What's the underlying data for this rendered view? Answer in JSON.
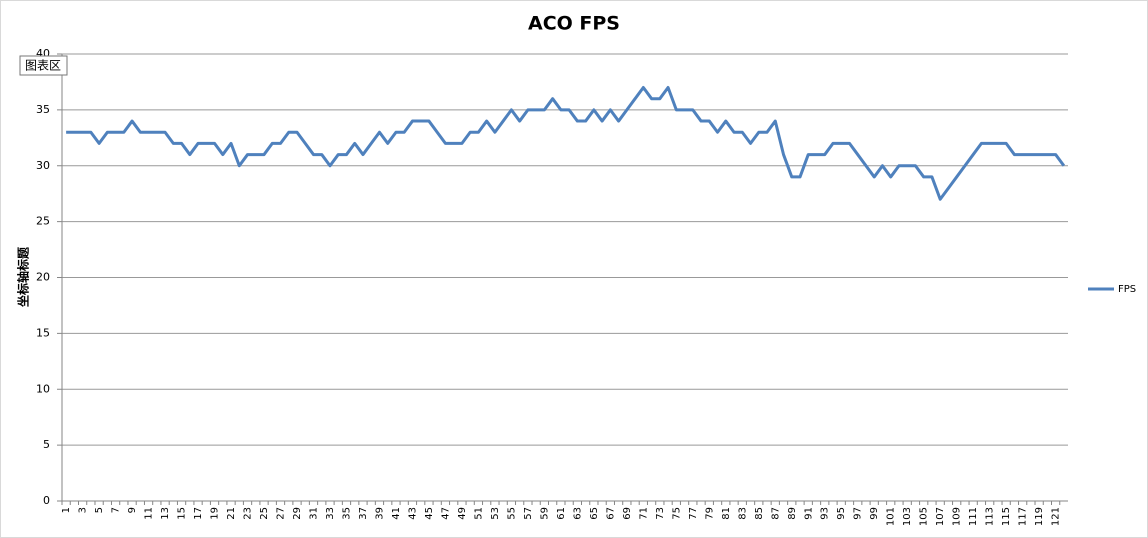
{
  "chart_data": {
    "type": "line",
    "title": "ACO FPS",
    "y_label": "坐标轴标题",
    "tooltip": "图表区",
    "categories": [
      1,
      null,
      3,
      null,
      5,
      null,
      7,
      null,
      9,
      null,
      11,
      null,
      13,
      null,
      15,
      null,
      17,
      null,
      19,
      null,
      21,
      null,
      23,
      null,
      25,
      null,
      27,
      null,
      29,
      null,
      31,
      null,
      33,
      null,
      35,
      null,
      37,
      null,
      39,
      null,
      41,
      null,
      43,
      null,
      45,
      null,
      47,
      null,
      49,
      null,
      51,
      null,
      53,
      null,
      55,
      null,
      57,
      null,
      59,
      null,
      61,
      null,
      63,
      null,
      65,
      null,
      67,
      null,
      69,
      null,
      71,
      null,
      73,
      null,
      75,
      null,
      77,
      null,
      79,
      null,
      81,
      null,
      83,
      null,
      85,
      null,
      87,
      null,
      89,
      null,
      91,
      null,
      93,
      null,
      95,
      null,
      97,
      null,
      99,
      null,
      101,
      null,
      103,
      null,
      105,
      null,
      107,
      null,
      109,
      null,
      111,
      null,
      113,
      null,
      115,
      null,
      117,
      null,
      119,
      null,
      121,
      null
    ],
    "series": [
      {
        "name": "FPS",
        "color": "#4f81bd",
        "values": [
          33,
          33,
          33,
          33,
          32,
          33,
          33,
          33,
          34,
          33,
          33,
          33,
          33,
          32,
          32,
          31,
          32,
          32,
          32,
          31,
          32,
          30,
          31,
          31,
          31,
          32,
          32,
          33,
          33,
          32,
          31,
          31,
          30,
          31,
          31,
          32,
          31,
          32,
          33,
          32,
          33,
          33,
          34,
          34,
          34,
          33,
          32,
          32,
          32,
          33,
          33,
          34,
          33,
          34,
          35,
          34,
          35,
          35,
          35,
          36,
          35,
          35,
          34,
          34,
          35,
          34,
          35,
          34,
          35,
          36,
          37,
          36,
          36,
          37,
          35,
          35,
          35,
          34,
          34,
          33,
          34,
          33,
          33,
          32,
          33,
          33,
          34,
          31,
          29,
          29,
          31,
          31,
          31,
          32,
          32,
          32,
          31,
          30,
          29,
          30,
          29,
          30,
          30,
          30,
          29,
          29,
          27,
          28,
          29,
          30,
          31,
          32,
          32,
          32,
          32,
          31,
          31,
          31,
          31,
          31,
          31,
          30
        ]
      }
    ],
    "ylim": [
      0,
      40
    ],
    "yticks": [
      0,
      5,
      10,
      15,
      20,
      25,
      30,
      35,
      40
    ],
    "grid": true,
    "legend": "right"
  }
}
